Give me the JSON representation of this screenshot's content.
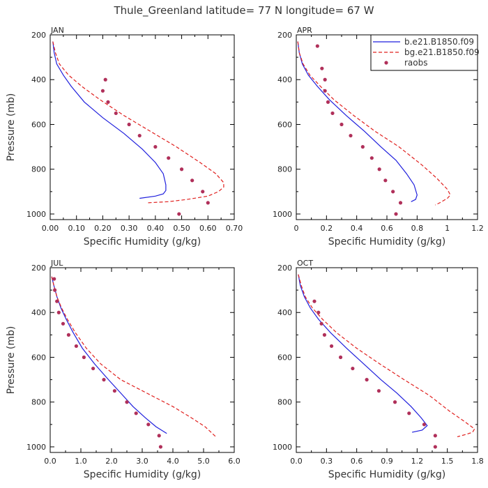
{
  "suptitle": "Thule_Greenland  latitude= 77 N longitude= 67 W",
  "colors": {
    "model1": "#1f1fdd",
    "model2": "#e0201e",
    "obs": "#b0305a",
    "axis": "#000000"
  },
  "legend": {
    "placement": "top-right of APR panel",
    "entries": [
      "b.e21.B1850.f09",
      "bg.e21.B1850.f09",
      "raobs"
    ]
  },
  "chart_data": [
    {
      "type": "line",
      "title": "JAN",
      "xlabel": "Specific Humidity (g/kg)",
      "ylabel": "Pressure (mb)",
      "xlim": [
        0,
        0.7
      ],
      "ylim": [
        1025,
        200
      ],
      "xticks": [
        0.0,
        0.1,
        0.2,
        0.3,
        0.4,
        0.5,
        0.6,
        0.7
      ],
      "xticklabels": [
        "0.00",
        "0.10",
        "0.20",
        "0.30",
        "0.40",
        "0.50",
        "0.60",
        "0.70"
      ],
      "yticks": [
        200,
        400,
        600,
        800,
        1000
      ],
      "yticklabels": [
        "200",
        "400",
        "600",
        "800",
        "1000"
      ],
      "series": [
        {
          "name": "b.e21.B1850.f09",
          "style": "solid",
          "points": [
            [
              0.01,
              230
            ],
            [
              0.015,
              280
            ],
            [
              0.025,
              330
            ],
            [
              0.05,
              380
            ],
            [
              0.08,
              430
            ],
            [
              0.13,
              500
            ],
            [
              0.2,
              570
            ],
            [
              0.28,
              640
            ],
            [
              0.35,
              710
            ],
            [
              0.4,
              770
            ],
            [
              0.43,
              820
            ],
            [
              0.44,
              870
            ],
            [
              0.44,
              895
            ],
            [
              0.43,
              910
            ],
            [
              0.4,
              920
            ],
            [
              0.34,
              930
            ]
          ]
        },
        {
          "name": "bg.e21.B1850.f09",
          "style": "dashed",
          "points": [
            [
              0.01,
              230
            ],
            [
              0.02,
              280
            ],
            [
              0.035,
              330
            ],
            [
              0.07,
              380
            ],
            [
              0.12,
              430
            ],
            [
              0.19,
              490
            ],
            [
              0.28,
              560
            ],
            [
              0.38,
              630
            ],
            [
              0.48,
              700
            ],
            [
              0.57,
              770
            ],
            [
              0.63,
              820
            ],
            [
              0.66,
              860
            ],
            [
              0.66,
              880
            ],
            [
              0.64,
              900
            ],
            [
              0.6,
              920
            ],
            [
              0.52,
              935
            ],
            [
              0.45,
              945
            ],
            [
              0.37,
              950
            ]
          ]
        },
        {
          "name": "raobs",
          "style": "markers",
          "points": [
            [
              0.21,
              400
            ],
            [
              0.2,
              450
            ],
            [
              0.22,
              500
            ],
            [
              0.25,
              550
            ],
            [
              0.3,
              600
            ],
            [
              0.34,
              650
            ],
            [
              0.4,
              700
            ],
            [
              0.45,
              750
            ],
            [
              0.5,
              800
            ],
            [
              0.54,
              850
            ],
            [
              0.58,
              900
            ],
            [
              0.6,
              950
            ],
            [
              0.49,
              1000
            ]
          ]
        }
      ]
    },
    {
      "type": "line",
      "title": "APR",
      "xlabel": "Specific Humidity (g/kg)",
      "ylabel": "",
      "xlim": [
        0,
        1.2
      ],
      "ylim": [
        1025,
        200
      ],
      "xticks": [
        0,
        0.2,
        0.4,
        0.6,
        0.8,
        1.0,
        1.2
      ],
      "xticklabels": [
        "0",
        "0.2",
        "0.4",
        "0.6",
        "0.8",
        "1",
        "1.2"
      ],
      "yticks": [
        200,
        400,
        600,
        800,
        1000
      ],
      "yticklabels": [
        "200",
        "400",
        "600",
        "800",
        "1000"
      ],
      "series": [
        {
          "name": "b.e21.B1850.f09",
          "style": "solid",
          "points": [
            [
              0.01,
              230
            ],
            [
              0.02,
              280
            ],
            [
              0.04,
              330
            ],
            [
              0.08,
              380
            ],
            [
              0.14,
              430
            ],
            [
              0.22,
              490
            ],
            [
              0.33,
              560
            ],
            [
              0.45,
              630
            ],
            [
              0.56,
              700
            ],
            [
              0.66,
              760
            ],
            [
              0.73,
              820
            ],
            [
              0.78,
              870
            ],
            [
              0.8,
              915
            ],
            [
              0.79,
              935
            ],
            [
              0.76,
              945
            ]
          ]
        },
        {
          "name": "bg.e21.B1850.f09",
          "style": "dashed",
          "points": [
            [
              0.01,
              230
            ],
            [
              0.02,
              280
            ],
            [
              0.045,
              330
            ],
            [
              0.09,
              380
            ],
            [
              0.16,
              430
            ],
            [
              0.25,
              490
            ],
            [
              0.38,
              560
            ],
            [
              0.52,
              630
            ],
            [
              0.68,
              700
            ],
            [
              0.83,
              780
            ],
            [
              0.93,
              840
            ],
            [
              1.0,
              890
            ],
            [
              1.02,
              915
            ],
            [
              1.0,
              930
            ],
            [
              0.95,
              950
            ],
            [
              0.92,
              960
            ]
          ]
        },
        {
          "name": "raobs",
          "style": "markers",
          "points": [
            [
              0.14,
              250
            ],
            [
              0.17,
              350
            ],
            [
              0.19,
              400
            ],
            [
              0.19,
              450
            ],
            [
              0.21,
              500
            ],
            [
              0.24,
              550
            ],
            [
              0.3,
              600
            ],
            [
              0.36,
              650
            ],
            [
              0.44,
              700
            ],
            [
              0.5,
              750
            ],
            [
              0.55,
              800
            ],
            [
              0.59,
              850
            ],
            [
              0.64,
              900
            ],
            [
              0.69,
              950
            ],
            [
              0.66,
              1000
            ]
          ]
        }
      ]
    },
    {
      "type": "line",
      "title": "JUL",
      "xlabel": "Specific Humidity (g/kg)",
      "ylabel": "Pressure (mb)",
      "xlim": [
        0,
        6
      ],
      "ylim": [
        1025,
        200
      ],
      "xticks": [
        0,
        1,
        2,
        3,
        4,
        5,
        6
      ],
      "xticklabels": [
        "0.0",
        "1.0",
        "2.0",
        "3.0",
        "4.0",
        "5.0",
        "6.0"
      ],
      "yticks": [
        200,
        400,
        600,
        800,
        1000
      ],
      "yticklabels": [
        "200",
        "400",
        "600",
        "800",
        "1000"
      ],
      "series": [
        {
          "name": "b.e21.B1850.f09",
          "style": "solid",
          "points": [
            [
              0.05,
              240
            ],
            [
              0.12,
              280
            ],
            [
              0.22,
              330
            ],
            [
              0.35,
              380
            ],
            [
              0.52,
              430
            ],
            [
              0.75,
              490
            ],
            [
              1.05,
              560
            ],
            [
              1.45,
              630
            ],
            [
              1.9,
              700
            ],
            [
              2.3,
              760
            ],
            [
              2.7,
              820
            ],
            [
              3.1,
              870
            ],
            [
              3.45,
              910
            ],
            [
              3.8,
              940
            ]
          ]
        },
        {
          "name": "bg.e21.B1850.f09",
          "style": "dashed",
          "points": [
            [
              0.05,
              240
            ],
            [
              0.12,
              280
            ],
            [
              0.22,
              330
            ],
            [
              0.37,
              380
            ],
            [
              0.56,
              430
            ],
            [
              0.82,
              490
            ],
            [
              1.18,
              560
            ],
            [
              1.65,
              630
            ],
            [
              2.3,
              700
            ],
            [
              3.15,
              760
            ],
            [
              4.0,
              820
            ],
            [
              4.6,
              870
            ],
            [
              5.05,
              910
            ],
            [
              5.4,
              955
            ]
          ]
        },
        {
          "name": "raobs",
          "style": "markers",
          "points": [
            [
              0.13,
              250
            ],
            [
              0.15,
              300
            ],
            [
              0.22,
              350
            ],
            [
              0.28,
              400
            ],
            [
              0.42,
              450
            ],
            [
              0.6,
              500
            ],
            [
              0.85,
              550
            ],
            [
              1.1,
              600
            ],
            [
              1.4,
              650
            ],
            [
              1.75,
              700
            ],
            [
              2.1,
              750
            ],
            [
              2.5,
              800
            ],
            [
              2.8,
              850
            ],
            [
              3.2,
              900
            ],
            [
              3.55,
              950
            ],
            [
              3.6,
              1000
            ]
          ]
        }
      ]
    },
    {
      "type": "line",
      "title": "OCT",
      "xlabel": "Specific Humidity (g/kg)",
      "ylabel": "",
      "xlim": [
        0,
        1.8
      ],
      "ylim": [
        1025,
        200
      ],
      "xticks": [
        0,
        0.3,
        0.6,
        0.9,
        1.2,
        1.5,
        1.8
      ],
      "xticklabels": [
        "0.0",
        "0.3",
        "0.6",
        "0.9",
        "1.2",
        "1.5",
        "1.8"
      ],
      "yticks": [
        200,
        400,
        600,
        800,
        1000
      ],
      "yticklabels": [
        "200",
        "400",
        "600",
        "800",
        "1000"
      ],
      "series": [
        {
          "name": "b.e21.B1850.f09",
          "style": "solid",
          "points": [
            [
              0.02,
              230
            ],
            [
              0.04,
              280
            ],
            [
              0.08,
              330
            ],
            [
              0.14,
              380
            ],
            [
              0.22,
              430
            ],
            [
              0.34,
              490
            ],
            [
              0.5,
              560
            ],
            [
              0.67,
              630
            ],
            [
              0.84,
              700
            ],
            [
              1.0,
              760
            ],
            [
              1.14,
              820
            ],
            [
              1.24,
              870
            ],
            [
              1.3,
              905
            ],
            [
              1.25,
              925
            ],
            [
              1.15,
              935
            ]
          ]
        },
        {
          "name": "bg.e21.B1850.f09",
          "style": "dashed",
          "points": [
            [
              0.02,
              230
            ],
            [
              0.05,
              280
            ],
            [
              0.09,
              330
            ],
            [
              0.16,
              380
            ],
            [
              0.26,
              430
            ],
            [
              0.4,
              490
            ],
            [
              0.6,
              560
            ],
            [
              0.83,
              630
            ],
            [
              1.07,
              700
            ],
            [
              1.32,
              770
            ],
            [
              1.52,
              840
            ],
            [
              1.68,
              890
            ],
            [
              1.77,
              920
            ],
            [
              1.75,
              935
            ],
            [
              1.68,
              945
            ],
            [
              1.6,
              955
            ]
          ]
        },
        {
          "name": "raobs",
          "style": "markers",
          "points": [
            [
              0.18,
              350
            ],
            [
              0.22,
              400
            ],
            [
              0.25,
              450
            ],
            [
              0.28,
              500
            ],
            [
              0.35,
              550
            ],
            [
              0.44,
              600
            ],
            [
              0.56,
              650
            ],
            [
              0.7,
              700
            ],
            [
              0.82,
              750
            ],
            [
              0.98,
              800
            ],
            [
              1.12,
              850
            ],
            [
              1.27,
              900
            ],
            [
              1.38,
              950
            ],
            [
              1.38,
              1000
            ]
          ]
        }
      ]
    }
  ]
}
